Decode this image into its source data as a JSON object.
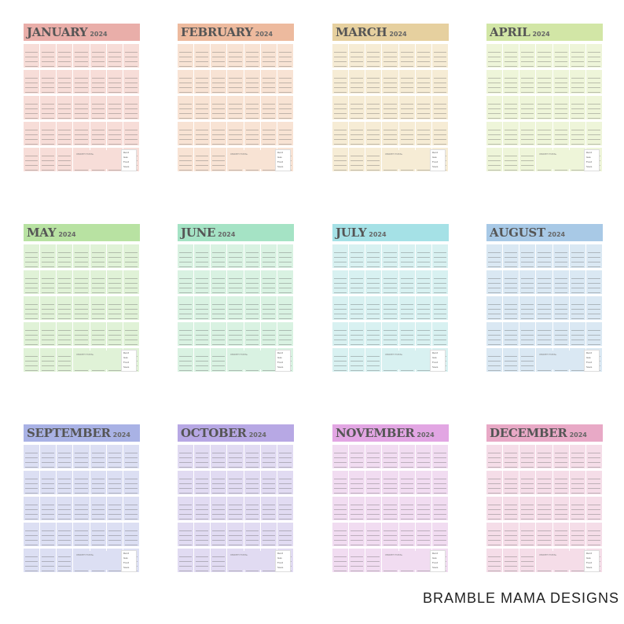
{
  "year": "2024",
  "months": [
    {
      "name": "JANUARY",
      "banner": "#e9aea9",
      "fill": "#f7ddd8"
    },
    {
      "name": "FEBRUARY",
      "banner": "#edba9e",
      "fill": "#f8e3d4"
    },
    {
      "name": "MARCH",
      "banner": "#e6d09f",
      "fill": "#f6ecd5"
    },
    {
      "name": "APRIL",
      "banner": "#d2e6a6",
      "fill": "#eef5d9"
    },
    {
      "name": "MAY",
      "banner": "#b8e2a2",
      "fill": "#e0f2d7"
    },
    {
      "name": "JUNE",
      "banner": "#a5e3c5",
      "fill": "#d9f2e2"
    },
    {
      "name": "JULY",
      "banner": "#a5e1e6",
      "fill": "#d8f1f1"
    },
    {
      "name": "AUGUST",
      "banner": "#a8c9e6",
      "fill": "#dae8f3"
    },
    {
      "name": "SEPTEMBER",
      "banner": "#a9b2e5",
      "fill": "#dcdff3"
    },
    {
      "name": "OCTOBER",
      "banner": "#b7a8e4",
      "fill": "#e1dbf2"
    },
    {
      "name": "NOVEMBER",
      "banner": "#e2a6e3",
      "fill": "#f1dcf1"
    },
    {
      "name": "DECEMBER",
      "banner": "#e8a9c6",
      "fill": "#f5dde8"
    }
  ],
  "labels": {
    "month_total": "MONTH TOTAL",
    "need_items": [
      "Rent",
      "Gas",
      "Food",
      "Save"
    ]
  },
  "brand": "BRAMBLE MAMA DESIGNS"
}
